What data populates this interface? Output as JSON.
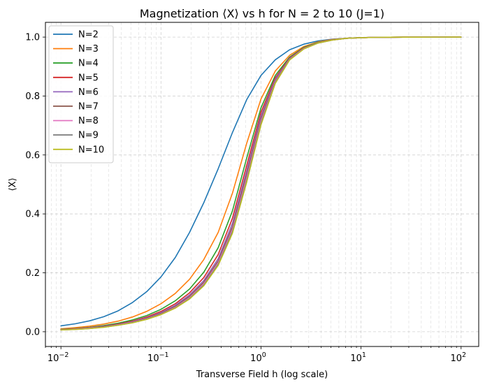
{
  "chart_data": {
    "type": "line",
    "title": "Magnetization ⟨X⟩ vs h for N = 2 to 10 (J=1)",
    "xlabel": "Transverse Field h (log scale)",
    "ylabel": "⟨X⟩",
    "xscale": "log",
    "xlim": [
      0.007,
      150
    ],
    "ylim": [
      -0.05,
      1.05
    ],
    "x_major_ticks": [
      0.01,
      0.1,
      1,
      10,
      100
    ],
    "x_tick_labels": [
      {
        "base": "10",
        "exp": "−2"
      },
      {
        "base": "10",
        "exp": "−1"
      },
      {
        "base": "10",
        "exp": "0"
      },
      {
        "base": "10",
        "exp": "1"
      },
      {
        "base": "10",
        "exp": "2"
      }
    ],
    "y_ticks": [
      0.0,
      0.2,
      0.4,
      0.6,
      0.8,
      1.0
    ],
    "y_tick_labels": [
      "0.0",
      "0.2",
      "0.4",
      "0.6",
      "0.8",
      "1.0"
    ],
    "grid": true,
    "legend_position": "top-left",
    "x": [
      0.01,
      0.0139,
      0.0193,
      0.0268,
      0.0373,
      0.0518,
      0.072,
      0.1,
      0.139,
      0.193,
      0.268,
      0.373,
      0.518,
      0.72,
      1.0,
      1.39,
      1.93,
      2.68,
      3.73,
      5.18,
      7.2,
      10,
      13.9,
      19.3,
      26.8,
      37.3,
      51.8,
      72,
      100
    ],
    "series": [
      {
        "name": "N=2",
        "color": "#1f77b4",
        "values": [
          0.02,
          0.027,
          0.037,
          0.051,
          0.071,
          0.099,
          0.136,
          0.186,
          0.252,
          0.337,
          0.438,
          0.553,
          0.676,
          0.788,
          0.87,
          0.923,
          0.957,
          0.976,
          0.987,
          0.993,
          0.996,
          0.998,
          0.999,
          0.9995,
          0.9997,
          0.9998,
          0.9999,
          0.99995,
          1.0
        ]
      },
      {
        "name": "N=3",
        "color": "#ff7f0e",
        "values": [
          0.01,
          0.014,
          0.019,
          0.026,
          0.036,
          0.05,
          0.069,
          0.095,
          0.13,
          0.178,
          0.245,
          0.337,
          0.47,
          0.64,
          0.79,
          0.885,
          0.938,
          0.968,
          0.984,
          0.992,
          0.996,
          0.998,
          0.999,
          0.9995,
          0.9997,
          0.9998,
          0.9999,
          0.99995,
          1.0
        ]
      },
      {
        "name": "N=4",
        "color": "#2ca02c",
        "values": [
          0.008,
          0.011,
          0.015,
          0.021,
          0.029,
          0.04,
          0.055,
          0.076,
          0.105,
          0.145,
          0.202,
          0.285,
          0.41,
          0.59,
          0.76,
          0.87,
          0.932,
          0.965,
          0.982,
          0.991,
          0.996,
          0.998,
          0.999,
          0.9995,
          0.9997,
          0.9998,
          0.9999,
          0.99995,
          1.0
        ]
      },
      {
        "name": "N=5",
        "color": "#d62728",
        "values": [
          0.007,
          0.01,
          0.014,
          0.019,
          0.026,
          0.036,
          0.05,
          0.069,
          0.095,
          0.132,
          0.184,
          0.262,
          0.385,
          0.565,
          0.745,
          0.862,
          0.929,
          0.963,
          0.981,
          0.991,
          0.996,
          0.998,
          0.999,
          0.9995,
          0.9997,
          0.9998,
          0.9999,
          0.99995,
          1.0
        ]
      },
      {
        "name": "N=6",
        "color": "#9467bd",
        "values": [
          0.007,
          0.009,
          0.013,
          0.018,
          0.025,
          0.034,
          0.047,
          0.065,
          0.09,
          0.125,
          0.174,
          0.248,
          0.368,
          0.548,
          0.733,
          0.857,
          0.927,
          0.962,
          0.981,
          0.991,
          0.996,
          0.998,
          0.999,
          0.9995,
          0.9997,
          0.9998,
          0.9999,
          0.99995,
          1.0
        ]
      },
      {
        "name": "N=7",
        "color": "#8c564b",
        "values": [
          0.006,
          0.009,
          0.012,
          0.017,
          0.024,
          0.033,
          0.045,
          0.062,
          0.086,
          0.12,
          0.168,
          0.24,
          0.356,
          0.535,
          0.723,
          0.852,
          0.925,
          0.961,
          0.98,
          0.99,
          0.996,
          0.998,
          0.999,
          0.9995,
          0.9997,
          0.9998,
          0.9999,
          0.99995,
          1.0
        ]
      },
      {
        "name": "N=8",
        "color": "#e377c2",
        "values": [
          0.006,
          0.009,
          0.012,
          0.016,
          0.023,
          0.032,
          0.044,
          0.06,
          0.083,
          0.116,
          0.163,
          0.234,
          0.347,
          0.524,
          0.715,
          0.849,
          0.924,
          0.961,
          0.98,
          0.99,
          0.996,
          0.998,
          0.999,
          0.9995,
          0.9997,
          0.9998,
          0.9999,
          0.99995,
          1.0
        ]
      },
      {
        "name": "N=9",
        "color": "#7f7f7f",
        "values": [
          0.006,
          0.008,
          0.011,
          0.016,
          0.022,
          0.031,
          0.043,
          0.059,
          0.081,
          0.113,
          0.159,
          0.229,
          0.34,
          0.515,
          0.708,
          0.846,
          0.923,
          0.96,
          0.98,
          0.99,
          0.996,
          0.998,
          0.999,
          0.9995,
          0.9997,
          0.9998,
          0.9999,
          0.99995,
          1.0
        ]
      },
      {
        "name": "N=10",
        "color": "#bcbd22",
        "values": [
          0.006,
          0.008,
          0.011,
          0.015,
          0.022,
          0.03,
          0.042,
          0.058,
          0.08,
          0.111,
          0.156,
          0.225,
          0.334,
          0.508,
          0.702,
          0.843,
          0.922,
          0.96,
          0.98,
          0.99,
          0.996,
          0.998,
          0.999,
          0.9995,
          0.9997,
          0.9998,
          0.9999,
          0.99995,
          1.0
        ]
      }
    ]
  }
}
